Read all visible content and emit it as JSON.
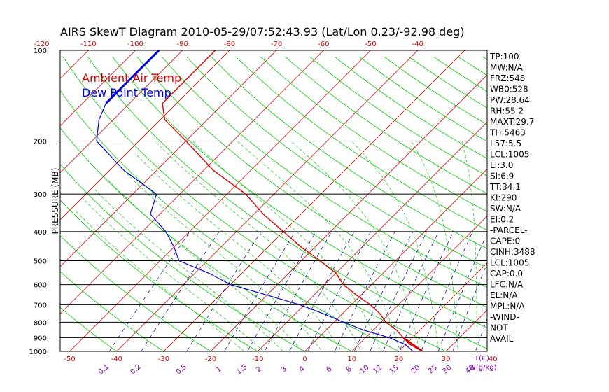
{
  "chart_data": {
    "type": "line",
    "title": "AIRS SkewT Diagram 2010-05-29/07:52:43.93 (Lat/Lon 0.23/-92.98 deg)",
    "ylabel": "PRESSURE (MB)",
    "xlabel_right": "T(C)",
    "mixing_ratio_unit": "W(g/kg)",
    "ylim": [
      1000,
      100
    ],
    "pressure_ticks": [
      100,
      200,
      300,
      400,
      500,
      600,
      700,
      800,
      900,
      1000
    ],
    "bottom_temp_ticks": [
      -50,
      -40,
      -30,
      -20,
      -10,
      0,
      10,
      20,
      30,
      40
    ],
    "top_temp_ticks": [
      -120,
      -110,
      -100,
      -90,
      -80,
      -70,
      -60,
      -50,
      -40
    ],
    "mixing_ratio_labels": [
      "0.1",
      "0.2",
      "0.5",
      "1",
      "1.5",
      "2",
      "3",
      "4",
      "6",
      "8",
      "10",
      "12",
      "15",
      "20",
      "25",
      "30",
      "40"
    ],
    "legend": [
      {
        "name": "Ambient Air Temp",
        "color": "#dd0000"
      },
      {
        "name": "Dew Point Temp",
        "color": "#0000dd"
      }
    ],
    "series": [
      {
        "name": "Ambient Air Temp",
        "color": "#dd0000",
        "points": [
          {
            "p": 100,
            "t": -83
          },
          {
            "p": 150,
            "t": -83
          },
          {
            "p": 170,
            "t": -79
          },
          {
            "p": 200,
            "t": -70
          },
          {
            "p": 250,
            "t": -58
          },
          {
            "p": 300,
            "t": -46
          },
          {
            "p": 350,
            "t": -38
          },
          {
            "p": 400,
            "t": -30
          },
          {
            "p": 450,
            "t": -23
          },
          {
            "p": 500,
            "t": -16
          },
          {
            "p": 550,
            "t": -10
          },
          {
            "p": 600,
            "t": -6
          },
          {
            "p": 650,
            "t": -1
          },
          {
            "p": 700,
            "t": 4
          },
          {
            "p": 750,
            "t": 8
          },
          {
            "p": 800,
            "t": 11
          },
          {
            "p": 850,
            "t": 15
          },
          {
            "p": 900,
            "t": 18
          },
          {
            "p": 950,
            "t": 21
          },
          {
            "p": 1000,
            "t": 25
          }
        ]
      },
      {
        "name": "Dew Point Temp",
        "color": "#0000dd",
        "points": [
          {
            "p": 100,
            "t": -95
          },
          {
            "p": 150,
            "t": -95
          },
          {
            "p": 170,
            "t": -93
          },
          {
            "p": 200,
            "t": -89
          },
          {
            "p": 250,
            "t": -77
          },
          {
            "p": 300,
            "t": -65
          },
          {
            "p": 350,
            "t": -62
          },
          {
            "p": 400,
            "t": -55
          },
          {
            "p": 450,
            "t": -50
          },
          {
            "p": 500,
            "t": -46
          },
          {
            "p": 550,
            "t": -37
          },
          {
            "p": 600,
            "t": -30
          },
          {
            "p": 650,
            "t": -20
          },
          {
            "p": 700,
            "t": -11
          },
          {
            "p": 750,
            "t": -4
          },
          {
            "p": 800,
            "t": 2
          },
          {
            "p": 850,
            "t": 8
          },
          {
            "p": 900,
            "t": 15
          },
          {
            "p": 950,
            "t": 20
          },
          {
            "p": 1000,
            "t": 23
          }
        ]
      }
    ],
    "stats": [
      "TP:100",
      "MW:N/A",
      "FRZ:548",
      "WB0:528",
      "PW:28.64",
      "RH:55.2",
      "MAXT:29.7",
      "TH:5463",
      "L57:5.5",
      "LCL:1005",
      "LI:3.0",
      "SI:6.9",
      "TT:34.1",
      "KI:290",
      "SW:N/A",
      "EI:0.2",
      "-PARCEL-",
      "CAPE:0",
      "CINH:3488",
      "LCL:1005",
      "CAP:0.0",
      "LFC:N/A",
      "EL:N/A",
      "MPL:N/A",
      "-WIND-",
      "NOT",
      "AVAIL"
    ],
    "colors": {
      "isotherm": "#dd0000",
      "dry_adiabat": "#00cc00",
      "moist_adiabat": "#00cc00",
      "mixing_ratio": "#0000aa",
      "isobar": "#000000",
      "text": "#000000",
      "bottom_tick": "#dd0000",
      "top_tick": "#dd0000",
      "mixing_label": "#8800aa"
    }
  }
}
